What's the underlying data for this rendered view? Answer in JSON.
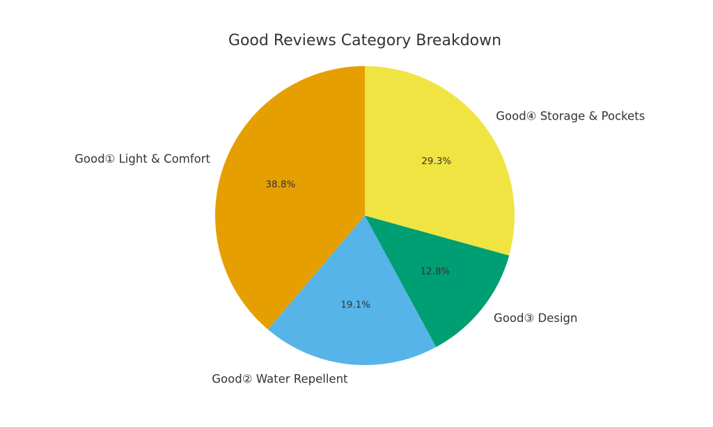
{
  "chart_data": {
    "type": "pie",
    "title": "Good Reviews Category Breakdown",
    "start_angle_deg": 90,
    "direction": "counterclockwise",
    "slices": [
      {
        "label": "Good① Light & Comfort",
        "value": 38.8,
        "pct_label": "38.8%",
        "color": "#E69F00"
      },
      {
        "label": "Good② Water Repellent",
        "value": 19.1,
        "pct_label": "19.1%",
        "color": "#56B4E9"
      },
      {
        "label": "Good③ Design",
        "value": 12.8,
        "pct_label": "12.8%",
        "color": "#009E73"
      },
      {
        "label": "Good④ Storage & Pockets",
        "value": 29.3,
        "pct_label": "29.3%",
        "color": "#F0E442"
      }
    ]
  }
}
